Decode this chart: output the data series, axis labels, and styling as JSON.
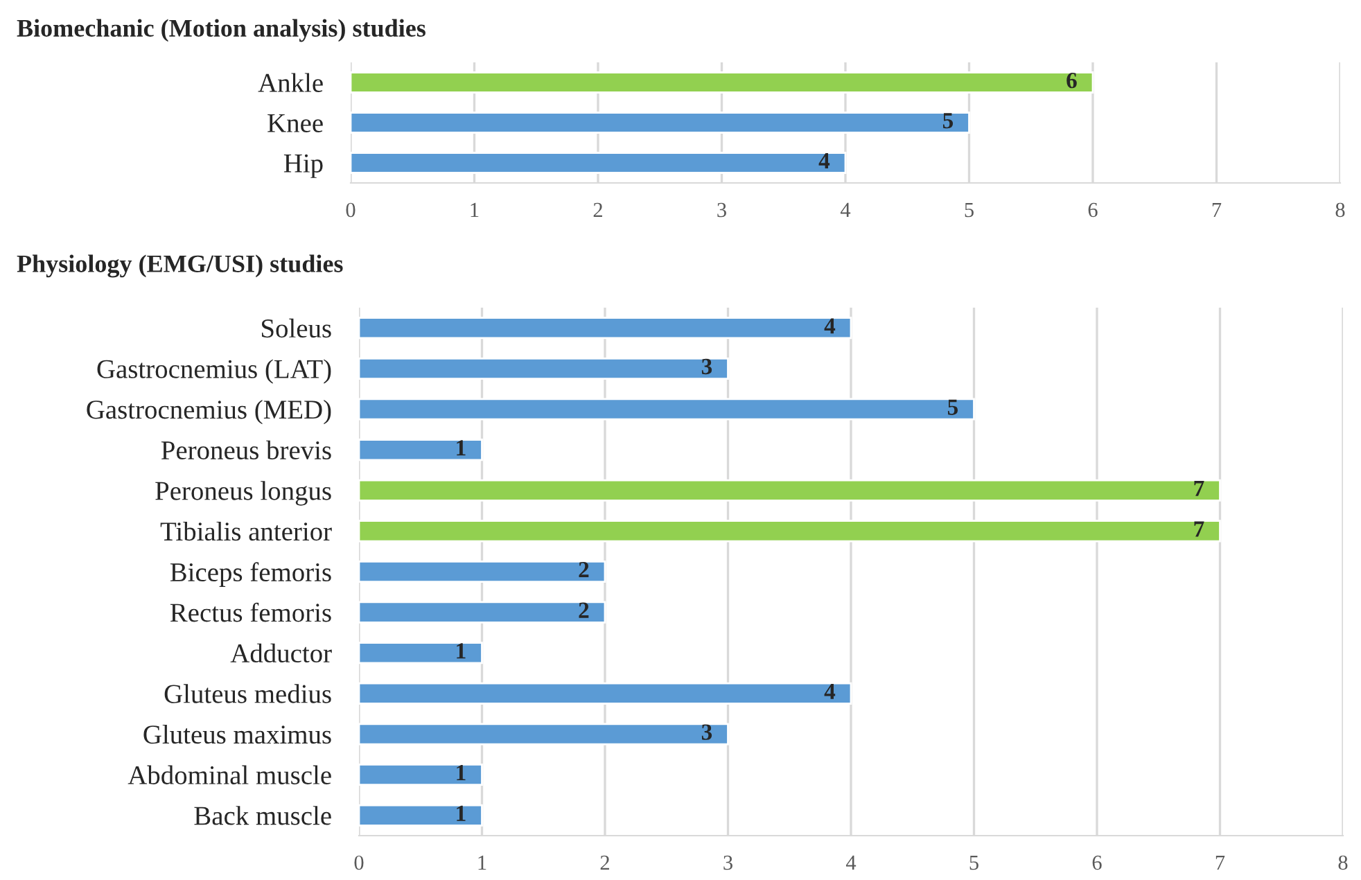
{
  "chart_data": [
    {
      "type": "bar",
      "orientation": "horizontal",
      "title": "Biomechanic (Motion analysis) studies",
      "categories": [
        "Ankle",
        "Knee",
        "Hip"
      ],
      "values": [
        6,
        5,
        4
      ],
      "colors": [
        "#92d050",
        "#5b9bd5",
        "#5b9bd5"
      ],
      "xlim": [
        0,
        8
      ],
      "xticks": [
        0,
        1,
        2,
        3,
        4,
        5,
        6,
        7,
        8
      ],
      "grid": "x",
      "data_labels": true,
      "legend": false
    },
    {
      "type": "bar",
      "orientation": "horizontal",
      "title": "Physiology (EMG/USI) studies",
      "categories": [
        "Soleus",
        "Gastrocnemius (LAT)",
        "Gastrocnemius (MED)",
        "Peroneus brevis",
        "Peroneus longus",
        "Tibialis anterior",
        "Biceps femoris",
        "Rectus femoris",
        "Adductor",
        "Gluteus medius",
        "Gluteus maximus",
        "Abdominal muscle",
        "Back muscle"
      ],
      "values": [
        4,
        3,
        5,
        1,
        7,
        7,
        2,
        2,
        1,
        4,
        3,
        1,
        1
      ],
      "colors": [
        "#5b9bd5",
        "#5b9bd5",
        "#5b9bd5",
        "#5b9bd5",
        "#92d050",
        "#92d050",
        "#5b9bd5",
        "#5b9bd5",
        "#5b9bd5",
        "#5b9bd5",
        "#5b9bd5",
        "#5b9bd5",
        "#5b9bd5"
      ],
      "xlim": [
        0,
        8
      ],
      "xticks": [
        0,
        1,
        2,
        3,
        4,
        5,
        6,
        7,
        8
      ],
      "grid": "x",
      "data_labels": true,
      "legend": false
    }
  ]
}
